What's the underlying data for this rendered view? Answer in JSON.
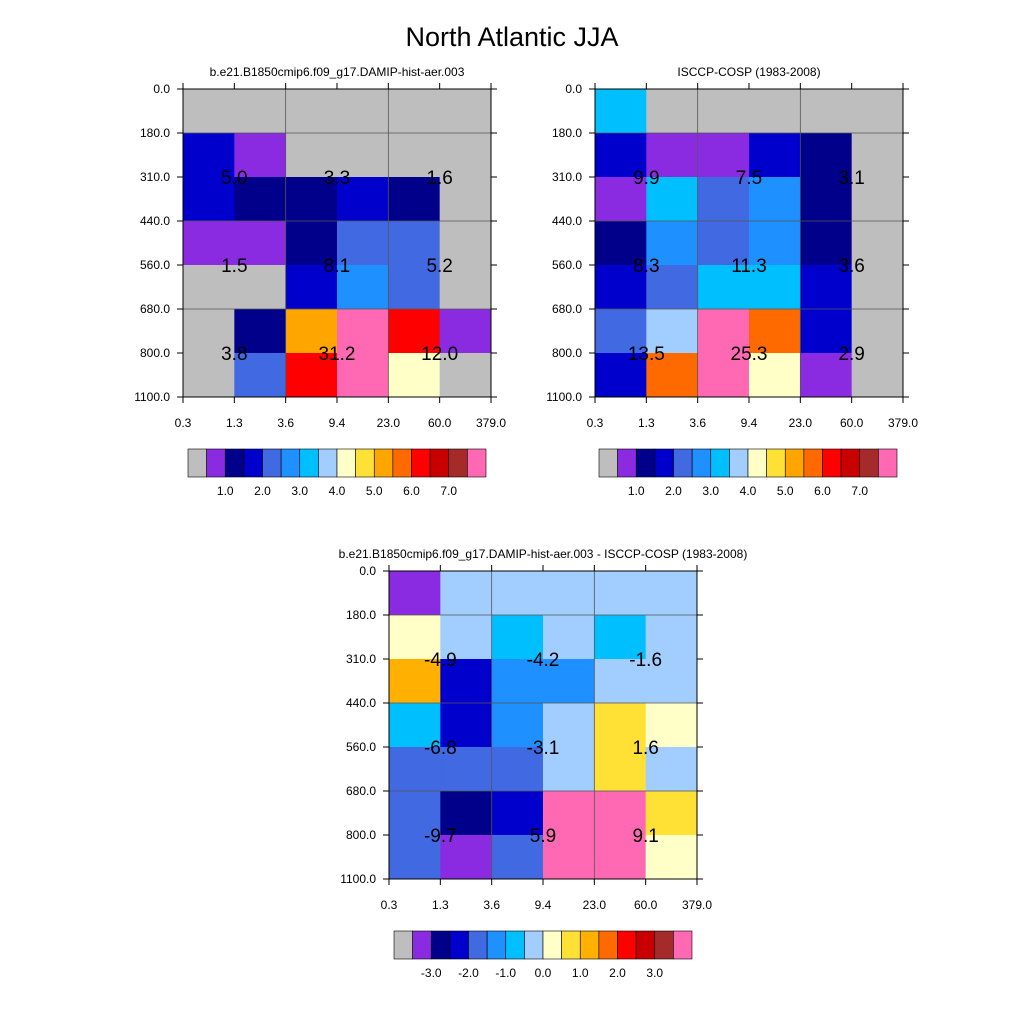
{
  "title": "North Atlantic JJA",
  "palette": {
    "abs": [
      "#bebebe",
      "#8a2be2",
      "#00008b",
      "#0000cd",
      "#4169e1",
      "#1e90ff",
      "#00bfff",
      "#a2cdff",
      "#ffffc8",
      "#ffe135",
      "#ffa500",
      "#ff6a00",
      "#ff0000",
      "#c80000",
      "#a52a2a",
      "#ff69b4"
    ],
    "diff": [
      "#bebebe",
      "#8a2be2",
      "#00008b",
      "#0000cd",
      "#4169e1",
      "#1e90ff",
      "#00bfff",
      "#a2cdff",
      "#ffffc8",
      "#ffe135",
      "#ffb000",
      "#ff6a00",
      "#ff0000",
      "#c80000",
      "#a52a2a",
      "#ff69b4"
    ]
  },
  "chart_data": [
    {
      "type": "heatmap",
      "title": "b.e21.B1850cmip6.f09_g17.DAMIP-hist-aer.003",
      "x_ticks": [
        "0.3",
        "1.3",
        "3.6",
        "9.4",
        "23.0",
        "60.0",
        "379.0"
      ],
      "y_ticks": [
        "0.0",
        "180.0",
        "310.0",
        "440.0",
        "560.0",
        "680.0",
        "800.0",
        "1100.0"
      ],
      "cells": [
        [
          0,
          0,
          0,
          0,
          0,
          0
        ],
        [
          3,
          1,
          0,
          0,
          0,
          0
        ],
        [
          3,
          2,
          2,
          3,
          2,
          0
        ],
        [
          1,
          1,
          2,
          4,
          4,
          0
        ],
        [
          0,
          0,
          3,
          5,
          4,
          0
        ],
        [
          0,
          2,
          10,
          15,
          12,
          1
        ],
        [
          0,
          4,
          12,
          15,
          8,
          0
        ]
      ],
      "labels": [
        {
          "text": "5.0",
          "row": 1,
          "col": 0
        },
        {
          "text": "3.3",
          "row": 1,
          "col": 2
        },
        {
          "text": "1.6",
          "row": 1,
          "col": 4
        },
        {
          "text": "1.5",
          "row": 3,
          "col": 0
        },
        {
          "text": "8.1",
          "row": 3,
          "col": 2
        },
        {
          "text": "5.2",
          "row": 3,
          "col": 4
        },
        {
          "text": "3.8",
          "row": 5,
          "col": 0
        },
        {
          "text": "31.2",
          "row": 5,
          "col": 2
        },
        {
          "text": "12.0",
          "row": 5,
          "col": 4
        }
      ],
      "colorbar_key": "abs",
      "colorbar_labels": [
        {
          "text": "1.0",
          "after": 2
        },
        {
          "text": "2.0",
          "after": 4
        },
        {
          "text": "3.0",
          "after": 6
        },
        {
          "text": "4.0",
          "after": 8
        },
        {
          "text": "5.0",
          "after": 10
        },
        {
          "text": "6.0",
          "after": 12
        },
        {
          "text": "7.0",
          "after": 14
        }
      ]
    },
    {
      "type": "heatmap",
      "title": "ISCCP-COSP (1983-2008)",
      "x_ticks": [
        "0.3",
        "1.3",
        "3.6",
        "9.4",
        "23.0",
        "60.0",
        "379.0"
      ],
      "y_ticks": [
        "0.0",
        "180.0",
        "310.0",
        "440.0",
        "560.0",
        "680.0",
        "800.0",
        "1100.0"
      ],
      "cells": [
        [
          6,
          0,
          0,
          0,
          0,
          0
        ],
        [
          3,
          1,
          1,
          3,
          2,
          0
        ],
        [
          1,
          6,
          4,
          5,
          2,
          0
        ],
        [
          2,
          5,
          4,
          5,
          2,
          0
        ],
        [
          3,
          4,
          6,
          6,
          3,
          0
        ],
        [
          4,
          7,
          15,
          11,
          3,
          0
        ],
        [
          3,
          11,
          15,
          8,
          1,
          0
        ]
      ],
      "labels": [
        {
          "text": "9.9",
          "row": 1,
          "col": 0
        },
        {
          "text": "7.5",
          "row": 1,
          "col": 2
        },
        {
          "text": "3.1",
          "row": 1,
          "col": 4
        },
        {
          "text": "8.3",
          "row": 3,
          "col": 0
        },
        {
          "text": "11.3",
          "row": 3,
          "col": 2
        },
        {
          "text": "3.6",
          "row": 3,
          "col": 4
        },
        {
          "text": "13.5",
          "row": 5,
          "col": 0
        },
        {
          "text": "25.3",
          "row": 5,
          "col": 2
        },
        {
          "text": "2.9",
          "row": 5,
          "col": 4
        }
      ],
      "colorbar_key": "abs",
      "colorbar_labels": [
        {
          "text": "1.0",
          "after": 2
        },
        {
          "text": "2.0",
          "after": 4
        },
        {
          "text": "3.0",
          "after": 6
        },
        {
          "text": "4.0",
          "after": 8
        },
        {
          "text": "5.0",
          "after": 10
        },
        {
          "text": "6.0",
          "after": 12
        },
        {
          "text": "7.0",
          "after": 14
        }
      ]
    },
    {
      "type": "heatmap",
      "title": "b.e21.B1850cmip6.f09_g17.DAMIP-hist-aer.003 - ISCCP-COSP (1983-2008)",
      "x_ticks": [
        "0.3",
        "1.3",
        "3.6",
        "9.4",
        "23.0",
        "60.0",
        "379.0"
      ],
      "y_ticks": [
        "0.0",
        "180.0",
        "310.0",
        "440.0",
        "560.0",
        "680.0",
        "800.0",
        "1100.0"
      ],
      "cells": [
        [
          1,
          7,
          7,
          7,
          7,
          7
        ],
        [
          8,
          7,
          6,
          7,
          6,
          7
        ],
        [
          10,
          3,
          5,
          5,
          7,
          7
        ],
        [
          6,
          3,
          5,
          7,
          9,
          8
        ],
        [
          4,
          4,
          4,
          7,
          9,
          7
        ],
        [
          4,
          2,
          3,
          15,
          15,
          9
        ],
        [
          4,
          1,
          4,
          15,
          15,
          8
        ]
      ],
      "labels": [
        {
          "text": "-4.9",
          "row": 1,
          "col": 0
        },
        {
          "text": "-4.2",
          "row": 1,
          "col": 2
        },
        {
          "text": "-1.6",
          "row": 1,
          "col": 4
        },
        {
          "text": "-6.8",
          "row": 3,
          "col": 0
        },
        {
          "text": "-3.1",
          "row": 3,
          "col": 2
        },
        {
          "text": "1.6",
          "row": 3,
          "col": 4
        },
        {
          "text": "-9.7",
          "row": 5,
          "col": 0
        },
        {
          "text": "5.9",
          "row": 5,
          "col": 2
        },
        {
          "text": "9.1",
          "row": 5,
          "col": 4
        }
      ],
      "colorbar_key": "diff",
      "colorbar_labels": [
        {
          "text": "-3.0",
          "after": 2
        },
        {
          "text": "-2.0",
          "after": 4
        },
        {
          "text": "-1.0",
          "after": 6
        },
        {
          "text": "0.0",
          "after": 8
        },
        {
          "text": "1.0",
          "after": 10
        },
        {
          "text": "2.0",
          "after": 12
        },
        {
          "text": "3.0",
          "after": 14
        }
      ]
    }
  ]
}
